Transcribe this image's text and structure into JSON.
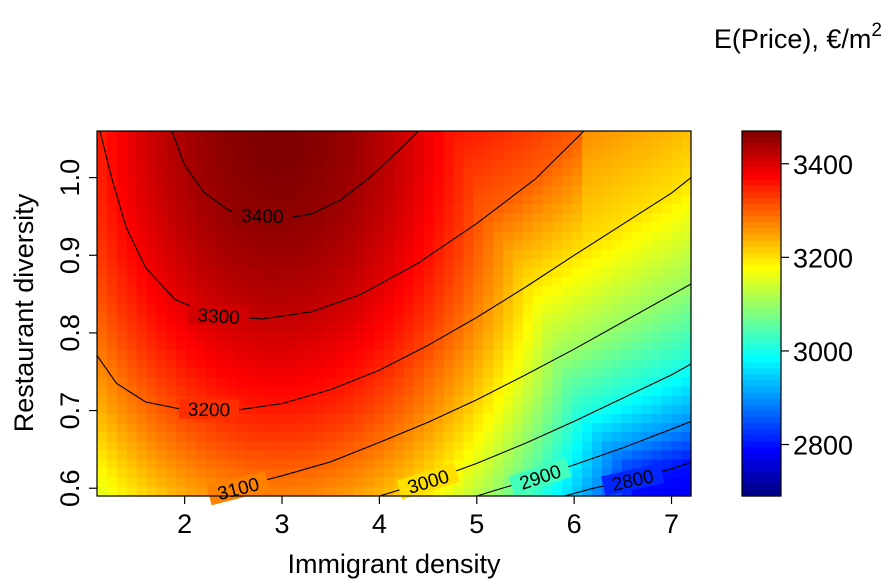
{
  "chart_data": {
    "type": "heatmap",
    "subtype": "filled-contour",
    "legend_title": {
      "main": "E(Price), €/m",
      "superscript": "2"
    },
    "xlabel": "Immigrant density",
    "ylabel": "Restaurant diversity",
    "xlim": [
      1.1,
      7.2
    ],
    "ylim": [
      0.59,
      1.06
    ],
    "x_ticks": [
      "2",
      "3",
      "4",
      "5",
      "6",
      "7"
    ],
    "y_ticks": [
      "0.6",
      "0.7",
      "0.8",
      "0.9",
      "1.0"
    ],
    "colorbar": {
      "range": [
        2690,
        3470
      ],
      "ticks": [
        "2800",
        "3000",
        "3200",
        "3400"
      ],
      "colormap": "jet",
      "placement": "right"
    },
    "contour_labels": [
      "3400",
      "3300",
      "3200",
      "3100",
      "3000",
      "2900",
      "2800"
    ],
    "contours": [
      {
        "level": 3400,
        "label": "3400",
        "points": [
          [
            1.87,
            1.06
          ],
          [
            2.0,
            1.016
          ],
          [
            2.2,
            0.981
          ],
          [
            2.45,
            0.958
          ],
          [
            2.7,
            0.948
          ],
          [
            3.0,
            0.947
          ],
          [
            3.3,
            0.953
          ],
          [
            3.6,
            0.971
          ],
          [
            3.9,
            1.0
          ],
          [
            4.2,
            1.035
          ],
          [
            4.4,
            1.06
          ]
        ],
        "label_at": [
          2.8,
          0.951
        ]
      },
      {
        "level": 3300,
        "label": "3300",
        "points": [
          [
            1.13,
            1.06
          ],
          [
            1.25,
            1.0
          ],
          [
            1.4,
            0.936
          ],
          [
            1.6,
            0.884
          ],
          [
            1.9,
            0.843
          ],
          [
            2.3,
            0.822
          ],
          [
            2.8,
            0.818
          ],
          [
            3.3,
            0.827
          ],
          [
            3.8,
            0.849
          ],
          [
            4.4,
            0.89
          ],
          [
            5.0,
            0.941
          ],
          [
            5.6,
            0.998
          ],
          [
            6.1,
            1.06
          ]
        ],
        "label_at": [
          2.35,
          0.822
        ]
      },
      {
        "level": 3200,
        "label": "3200",
        "points": [
          [
            1.1,
            0.771
          ],
          [
            1.3,
            0.735
          ],
          [
            1.6,
            0.711
          ],
          [
            2.0,
            0.701
          ],
          [
            2.5,
            0.7
          ],
          [
            3.0,
            0.709
          ],
          [
            3.5,
            0.727
          ],
          [
            4.0,
            0.752
          ],
          [
            4.5,
            0.784
          ],
          [
            5.0,
            0.82
          ],
          [
            5.5,
            0.859
          ],
          [
            6.0,
            0.9
          ],
          [
            6.5,
            0.94
          ],
          [
            7.0,
            0.98
          ],
          [
            7.2,
            1.0
          ]
        ],
        "label_at": [
          2.25,
          0.702
        ]
      },
      {
        "level": 3100,
        "label": "3100",
        "points": [
          [
            2.5,
            0.6
          ],
          [
            3.0,
            0.616
          ],
          [
            3.5,
            0.634
          ],
          [
            4.0,
            0.659
          ],
          [
            4.5,
            0.685
          ],
          [
            5.0,
            0.714
          ],
          [
            5.5,
            0.746
          ],
          [
            6.0,
            0.779
          ],
          [
            6.5,
            0.814
          ],
          [
            7.0,
            0.849
          ],
          [
            7.2,
            0.863
          ]
        ],
        "label_at": [
          2.55,
          0.6
        ]
      },
      {
        "level": 3000,
        "label": "3000",
        "points": [
          [
            4.0,
            0.59
          ],
          [
            4.5,
            0.609
          ],
          [
            5.0,
            0.632
          ],
          [
            5.5,
            0.658
          ],
          [
            6.0,
            0.686
          ],
          [
            6.5,
            0.716
          ],
          [
            7.0,
            0.746
          ],
          [
            7.2,
            0.76
          ]
        ],
        "label_at": [
          4.5,
          0.609
        ]
      },
      {
        "level": 2900,
        "label": "2900",
        "points": [
          [
            5.0,
            0.59
          ],
          [
            5.5,
            0.609
          ],
          [
            6.0,
            0.63
          ],
          [
            6.5,
            0.652
          ],
          [
            7.0,
            0.676
          ],
          [
            7.2,
            0.686
          ]
        ],
        "label_at": [
          5.65,
          0.615
        ]
      },
      {
        "level": 2800,
        "label": "2800",
        "points": [
          [
            5.9,
            0.59
          ],
          [
            6.2,
            0.6
          ],
          [
            6.6,
            0.611
          ],
          [
            7.0,
            0.625
          ],
          [
            7.2,
            0.633
          ]
        ],
        "label_at": [
          6.6,
          0.611
        ]
      }
    ],
    "surface_model": {
      "description": "E(Price) estimated over the (Immigrant density, Restaurant diversity) grid",
      "grid": {
        "nx": 60,
        "ny": 40
      }
    }
  }
}
